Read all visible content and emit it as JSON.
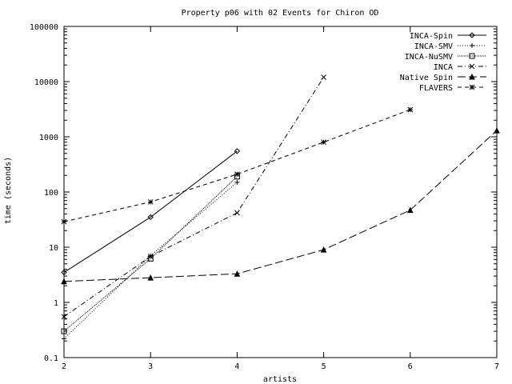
{
  "chart_data": {
    "type": "line",
    "title": "Property p06 with 02 Events for Chiron OD",
    "xlabel": "artists",
    "ylabel": "time (seconds)",
    "xlim": [
      2,
      7
    ],
    "ylim": [
      0.1,
      100000
    ],
    "y_scale": "log",
    "x_ticks": [
      2,
      3,
      4,
      5,
      6,
      7
    ],
    "x_tick_labels": [
      "2",
      "3",
      "4",
      "5",
      "6",
      "7"
    ],
    "y_ticks": [
      0.1,
      1,
      10,
      100,
      1000,
      10000,
      100000
    ],
    "y_tick_labels": [
      "0.1",
      "1",
      "10",
      "100",
      "1000",
      "10000",
      "100000"
    ],
    "grid": false,
    "legend_position": "top-right",
    "series": [
      {
        "name": "INCA-Spin",
        "marker": "diamond",
        "dash": "solid",
        "x": [
          2,
          3,
          4
        ],
        "y": [
          3.5,
          35,
          550
        ]
      },
      {
        "name": "INCA-SMV",
        "marker": "plus",
        "dash": "dotted",
        "x": [
          2,
          3,
          4
        ],
        "y": [
          0.22,
          7,
          150
        ]
      },
      {
        "name": "INCA-NuSMV",
        "marker": "square",
        "dash": "dotted-dense",
        "x": [
          2,
          3,
          4
        ],
        "y": [
          0.3,
          6.2,
          190
        ]
      },
      {
        "name": "INCA",
        "marker": "cross",
        "dash": "dashdot",
        "x": [
          2,
          3,
          4,
          5
        ],
        "y": [
          0.55,
          6.8,
          42,
          12000
        ]
      },
      {
        "name": "Native Spin",
        "marker": "triangle",
        "dash": "longdash",
        "x": [
          2,
          3,
          4,
          5,
          6,
          7
        ],
        "y": [
          2.4,
          2.8,
          3.3,
          9,
          47,
          1300
        ]
      },
      {
        "name": "FLAVERS",
        "marker": "star",
        "dash": "dashed",
        "x": [
          2,
          3,
          4,
          5,
          6
        ],
        "y": [
          29,
          66,
          210,
          800,
          3100
        ]
      }
    ]
  }
}
